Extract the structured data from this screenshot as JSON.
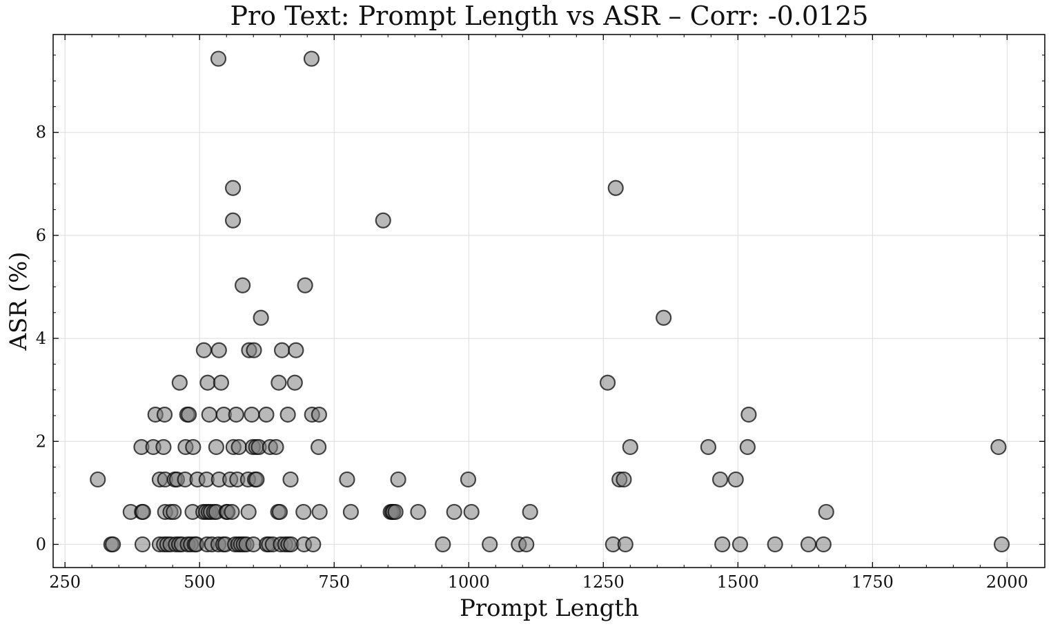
{
  "chart_data": {
    "type": "scatter",
    "title": "Pro Text: Prompt Length vs ASR – Corr: -0.0125",
    "xlabel": "Prompt Length",
    "ylabel": "ASR (%)",
    "xlim": [
      228,
      2070
    ],
    "ylim": [
      -0.45,
      9.9
    ],
    "xticks": [
      250,
      500,
      750,
      1000,
      1250,
      1500,
      1750,
      2000
    ],
    "yticks": [
      0,
      2,
      4,
      6,
      8
    ],
    "grid": true,
    "points": [
      [
        535,
        9.43
      ],
      [
        708,
        9.43
      ],
      [
        562,
        6.92
      ],
      [
        1273,
        6.92
      ],
      [
        562,
        6.29
      ],
      [
        841,
        6.29
      ],
      [
        580,
        5.03
      ],
      [
        696,
        5.03
      ],
      [
        614,
        4.4
      ],
      [
        1362,
        4.4
      ],
      [
        508,
        3.77
      ],
      [
        536,
        3.77
      ],
      [
        592,
        3.77
      ],
      [
        601,
        3.77
      ],
      [
        653,
        3.77
      ],
      [
        679,
        3.77
      ],
      [
        463,
        3.14
      ],
      [
        515,
        3.14
      ],
      [
        540,
        3.14
      ],
      [
        647,
        3.14
      ],
      [
        677,
        3.14
      ],
      [
        1258,
        3.14
      ],
      [
        418,
        2.52
      ],
      [
        435,
        2.52
      ],
      [
        477,
        2.52
      ],
      [
        480,
        2.52
      ],
      [
        518,
        2.52
      ],
      [
        545,
        2.52
      ],
      [
        568,
        2.52
      ],
      [
        597,
        2.52
      ],
      [
        624,
        2.52
      ],
      [
        664,
        2.52
      ],
      [
        709,
        2.52
      ],
      [
        722,
        2.52
      ],
      [
        1520,
        2.52
      ],
      [
        392,
        1.89
      ],
      [
        414,
        1.89
      ],
      [
        433,
        1.89
      ],
      [
        474,
        1.89
      ],
      [
        488,
        1.89
      ],
      [
        531,
        1.89
      ],
      [
        563,
        1.89
      ],
      [
        573,
        1.89
      ],
      [
        599,
        1.89
      ],
      [
        605,
        1.89
      ],
      [
        610,
        1.89
      ],
      [
        631,
        1.89
      ],
      [
        642,
        1.89
      ],
      [
        721,
        1.89
      ],
      [
        1300,
        1.89
      ],
      [
        1445,
        1.89
      ],
      [
        1518,
        1.89
      ],
      [
        1984,
        1.89
      ],
      [
        311,
        1.26
      ],
      [
        426,
        1.26
      ],
      [
        436,
        1.26
      ],
      [
        454,
        1.26
      ],
      [
        458,
        1.26
      ],
      [
        473,
        1.26
      ],
      [
        496,
        1.26
      ],
      [
        513,
        1.26
      ],
      [
        536,
        1.26
      ],
      [
        557,
        1.26
      ],
      [
        570,
        1.26
      ],
      [
        590,
        1.26
      ],
      [
        603,
        1.26
      ],
      [
        606,
        1.26
      ],
      [
        669,
        1.26
      ],
      [
        774,
        1.26
      ],
      [
        869,
        1.26
      ],
      [
        999,
        1.26
      ],
      [
        1280,
        1.26
      ],
      [
        1288,
        1.26
      ],
      [
        1467,
        1.26
      ],
      [
        1496,
        1.26
      ],
      [
        372,
        0.63
      ],
      [
        393,
        0.63
      ],
      [
        395,
        0.63
      ],
      [
        436,
        0.63
      ],
      [
        446,
        0.63
      ],
      [
        452,
        0.63
      ],
      [
        487,
        0.63
      ],
      [
        507,
        0.63
      ],
      [
        512,
        0.63
      ],
      [
        517,
        0.63
      ],
      [
        521,
        0.63
      ],
      [
        527,
        0.63
      ],
      [
        531,
        0.63
      ],
      [
        550,
        0.63
      ],
      [
        552,
        0.63
      ],
      [
        560,
        0.63
      ],
      [
        591,
        0.63
      ],
      [
        646,
        0.63
      ],
      [
        649,
        0.63
      ],
      [
        693,
        0.63
      ],
      [
        723,
        0.63
      ],
      [
        781,
        0.63
      ],
      [
        855,
        0.63
      ],
      [
        858,
        0.63
      ],
      [
        860,
        0.63
      ],
      [
        864,
        0.63
      ],
      [
        906,
        0.63
      ],
      [
        973,
        0.63
      ],
      [
        1005,
        0.63
      ],
      [
        1114,
        0.63
      ],
      [
        1664,
        0.63
      ],
      [
        336,
        0.0
      ],
      [
        339,
        0.0
      ],
      [
        394,
        0.0
      ],
      [
        426,
        0.0
      ],
      [
        434,
        0.0
      ],
      [
        440,
        0.0
      ],
      [
        446,
        0.0
      ],
      [
        456,
        0.0
      ],
      [
        462,
        0.0
      ],
      [
        467,
        0.0
      ],
      [
        478,
        0.0
      ],
      [
        484,
        0.0
      ],
      [
        491,
        0.0
      ],
      [
        494,
        0.0
      ],
      [
        514,
        0.0
      ],
      [
        523,
        0.0
      ],
      [
        535,
        0.0
      ],
      [
        544,
        0.0
      ],
      [
        548,
        0.0
      ],
      [
        566,
        0.0
      ],
      [
        572,
        0.0
      ],
      [
        577,
        0.0
      ],
      [
        582,
        0.0
      ],
      [
        587,
        0.0
      ],
      [
        600,
        0.0
      ],
      [
        625,
        0.0
      ],
      [
        629,
        0.0
      ],
      [
        636,
        0.0
      ],
      [
        651,
        0.0
      ],
      [
        659,
        0.0
      ],
      [
        665,
        0.0
      ],
      [
        670,
        0.0
      ],
      [
        694,
        0.0
      ],
      [
        711,
        0.0
      ],
      [
        952,
        0.0
      ],
      [
        1039,
        0.0
      ],
      [
        1093,
        0.0
      ],
      [
        1107,
        0.0
      ],
      [
        1268,
        0.0
      ],
      [
        1291,
        0.0
      ],
      [
        1471,
        0.0
      ],
      [
        1504,
        0.0
      ],
      [
        1569,
        0.0
      ],
      [
        1631,
        0.0
      ],
      [
        1659,
        0.0
      ],
      [
        1990,
        0.0
      ]
    ]
  }
}
